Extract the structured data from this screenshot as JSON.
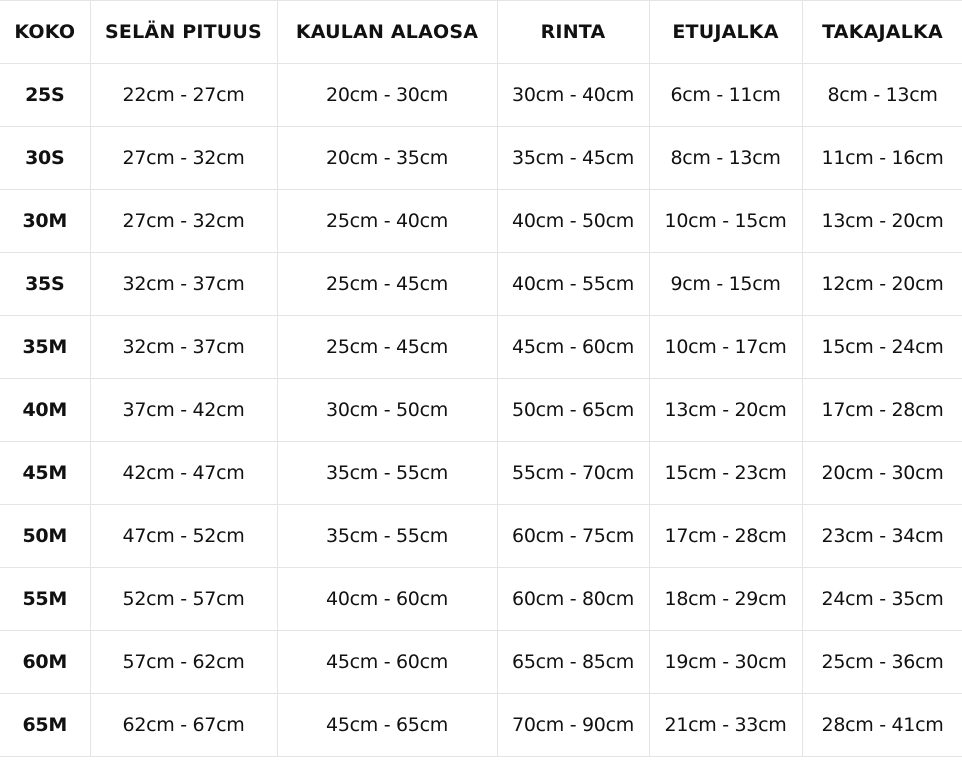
{
  "table": {
    "headers": [
      "KOKO",
      "SELÄN PITUUS",
      "KAULAN ALAOSA",
      "RINTA",
      "ETUJALKA",
      "TAKAJALKA"
    ],
    "rows": [
      [
        "25S",
        "22cm - 27cm",
        "20cm - 30cm",
        "30cm - 40cm",
        "6cm - 11cm",
        "8cm - 13cm"
      ],
      [
        "30S",
        "27cm - 32cm",
        "20cm - 35cm",
        "35cm - 45cm",
        "8cm - 13cm",
        "11cm - 16cm"
      ],
      [
        "30M",
        "27cm - 32cm",
        "25cm - 40cm",
        "40cm - 50cm",
        "10cm - 15cm",
        "13cm - 20cm"
      ],
      [
        "35S",
        "32cm - 37cm",
        "25cm - 45cm",
        "40cm - 55cm",
        "9cm - 15cm",
        "12cm - 20cm"
      ],
      [
        "35M",
        "32cm - 37cm",
        "25cm - 45cm",
        "45cm - 60cm",
        "10cm - 17cm",
        "15cm - 24cm"
      ],
      [
        "40M",
        "37cm - 42cm",
        "30cm - 50cm",
        "50cm - 65cm",
        "13cm - 20cm",
        "17cm - 28cm"
      ],
      [
        "45M",
        "42cm - 47cm",
        "35cm - 55cm",
        "55cm - 70cm",
        "15cm - 23cm",
        "20cm - 30cm"
      ],
      [
        "50M",
        "47cm - 52cm",
        "35cm - 55cm",
        "60cm - 75cm",
        "17cm - 28cm",
        "23cm - 34cm"
      ],
      [
        "55M",
        "52cm - 57cm",
        "40cm - 60cm",
        "60cm - 80cm",
        "18cm - 29cm",
        "24cm - 35cm"
      ],
      [
        "60M",
        "57cm - 62cm",
        "45cm - 60cm",
        "65cm - 85cm",
        "19cm - 30cm",
        "25cm - 36cm"
      ],
      [
        "65M",
        "62cm - 67cm",
        "45cm - 65cm",
        "70cm - 90cm",
        "21cm - 33cm",
        "28cm - 41cm"
      ]
    ]
  }
}
